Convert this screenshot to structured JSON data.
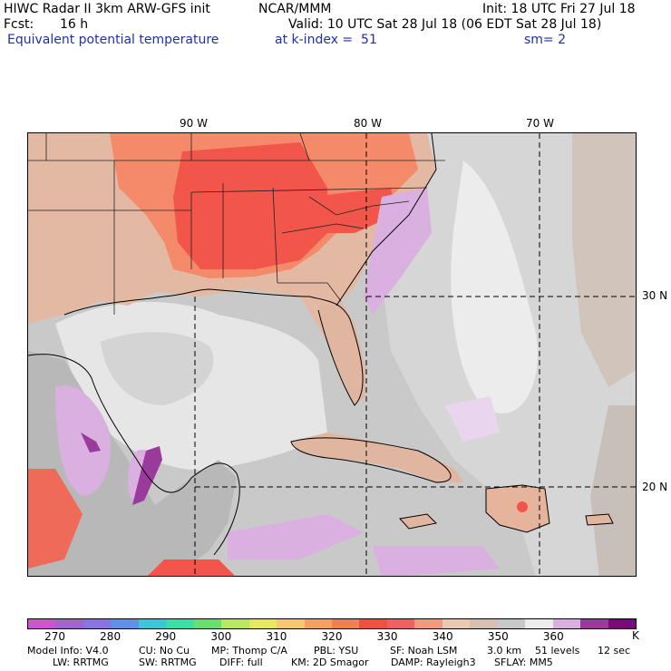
{
  "header": {
    "title": "HIWC Radar II 3km ARW-GFS init",
    "center": "NCAR/MMM",
    "init": "Init: 18 UTC Fri 27 Jul 18",
    "fcst_label": "Fcst:",
    "fcst_value": "16 h",
    "valid": "Valid: 10 UTC Sat 28 Jul 18 (06 EDT Sat 28 Jul 18)",
    "field": "Equivalent potential temperature",
    "level": "at k-index =  51",
    "smoothing": "sm= 2"
  },
  "map": {
    "longitude_labels": [
      "90 W",
      "80 W",
      "70 W"
    ],
    "latitude_labels": [
      "30 N",
      "20 N"
    ]
  },
  "colorbar": {
    "colors": [
      "#cc55cc",
      "#a065cc",
      "#8a72e0",
      "#5f8fe8",
      "#3ac8d8",
      "#3ae0a8",
      "#68e070",
      "#b8e860",
      "#e8e860",
      "#f6c870",
      "#f6a060",
      "#f08050",
      "#f05040",
      "#f06060",
      "#f29a80",
      "#ebc8b0",
      "#d8c0b0",
      "#c8c8c8",
      "#ececec",
      "#dab0e0",
      "#9a3a9a",
      "#7a0a7a"
    ],
    "tick_labels": [
      "270",
      "280",
      "290",
      "300",
      "310",
      "320",
      "330",
      "340",
      "350",
      "360"
    ],
    "unit": "K"
  },
  "model_info": {
    "line1": [
      "Model Info: V4.0",
      "CU: No Cu",
      "MP: Thomp C/A",
      "PBL: YSU",
      "SF: Noah LSM",
      "3.0 km",
      "51 levels",
      "12 sec"
    ],
    "line2": [
      "LW: RRTMG",
      "SW: RRTMG",
      "DIFF: full",
      "KM: 2D Smagor",
      "DAMP: Rayleigh3",
      "SFLAY: MM5"
    ]
  }
}
